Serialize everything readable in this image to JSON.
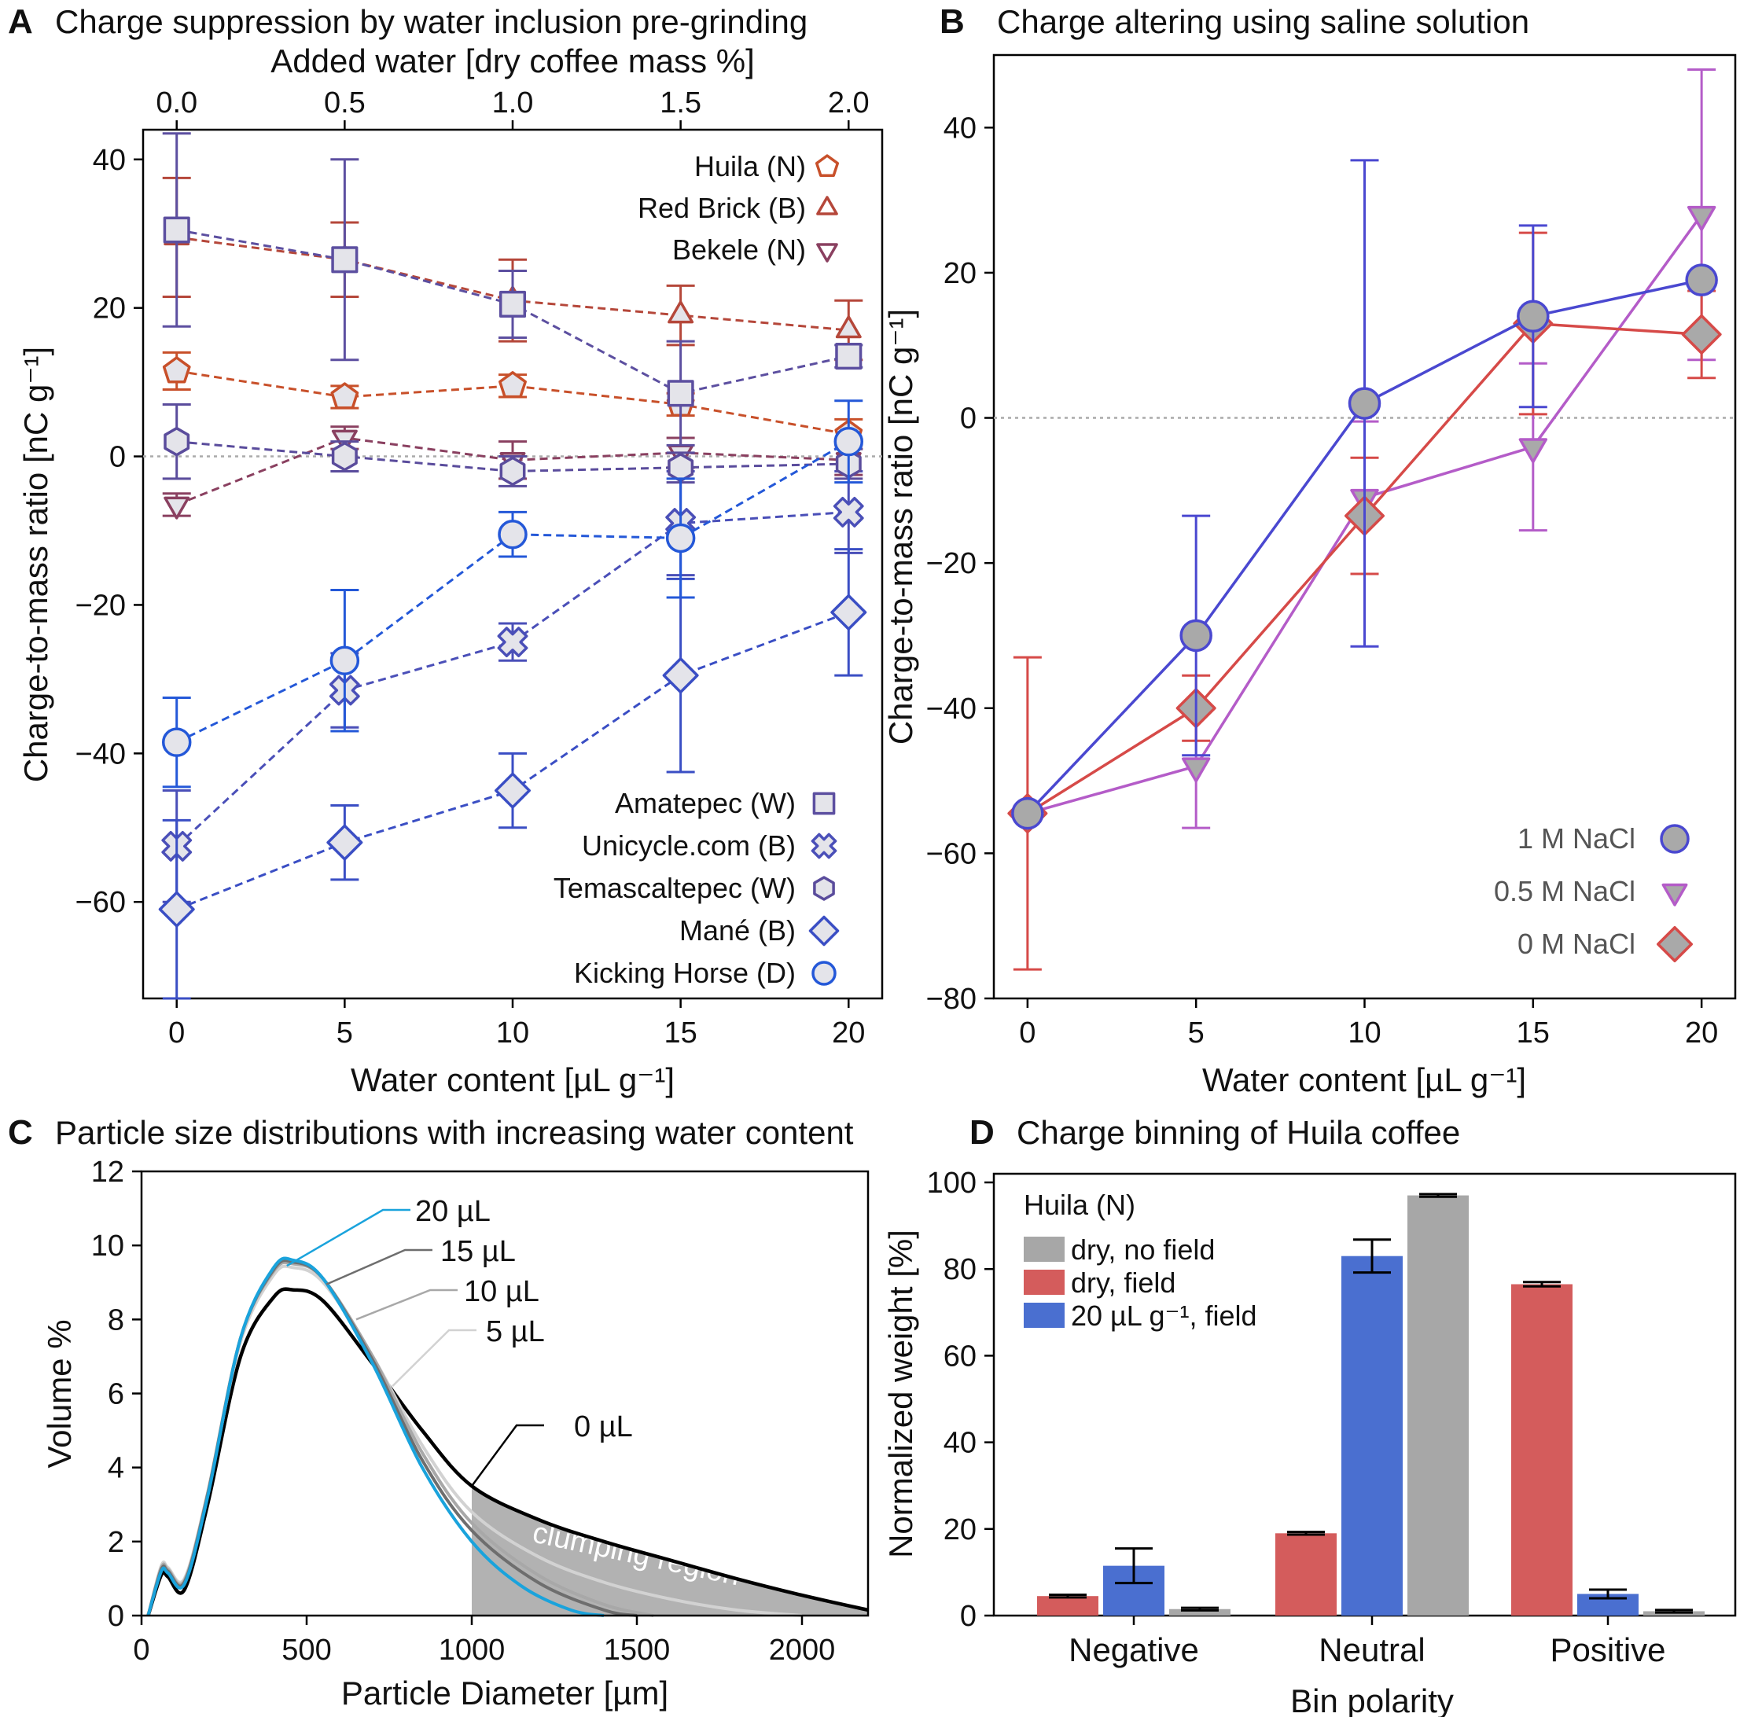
{
  "chart_data": [
    {
      "panel": "A",
      "type": "line",
      "title": "Charge suppression by water inclusion pre-grinding",
      "xlabel": "Water content [µL g⁻¹]",
      "x2label": "Added water [dry coffee mass %]",
      "ylabel": "Charge-to-mass ratio [nC g⁻¹]",
      "xlim": [
        -1,
        21
      ],
      "ylim": [
        -73,
        44
      ],
      "xticks": [
        0,
        5,
        10,
        15,
        20
      ],
      "x2ticks": [
        "0.0",
        "0.5",
        "1.0",
        "1.5",
        "2.0"
      ],
      "yticks": [
        -60,
        -40,
        -20,
        0,
        20,
        40
      ],
      "x": [
        0,
        5,
        10,
        15,
        20
      ],
      "series": [
        {
          "name": "Huila (N)",
          "marker": "pentagon",
          "color": "#c8502a",
          "values": [
            11.5,
            8,
            9.5,
            7,
            3
          ],
          "err": [
            2.5,
            1.5,
            1.5,
            1.5,
            2
          ]
        },
        {
          "name": "Red Brick (B)",
          "marker": "triangle-up",
          "color": "#b5473a",
          "values": [
            29.5,
            26.5,
            21,
            19,
            17
          ],
          "err": [
            8,
            5,
            5.5,
            4,
            4
          ]
        },
        {
          "name": "Bekele (N)",
          "marker": "triangle-down",
          "color": "#8a4060",
          "values": [
            -6.5,
            2.5,
            -0.5,
            0.5,
            -0.5
          ],
          "err": [
            1.5,
            1.5,
            2.5,
            2,
            2
          ]
        },
        {
          "name": "Amatepec (W)",
          "marker": "square",
          "color": "#5c4fa0",
          "values": [
            30.5,
            26.5,
            20.5,
            8.5,
            13.5
          ],
          "err": [
            13,
            13.5,
            4.5,
            7,
            1.5
          ]
        },
        {
          "name": "Unicycle.com (B)",
          "marker": "cross",
          "color": "#4a4fb8",
          "values": [
            -52.5,
            -31.5,
            -25,
            -9,
            -7.5
          ],
          "err": [
            7.5,
            5,
            2.5,
            7,
            5.5
          ]
        },
        {
          "name": "Temascaltepec (W)",
          "marker": "hexagon",
          "color": "#5a4c9c",
          "values": [
            2,
            0,
            -2,
            -1.5,
            -1
          ],
          "err": [
            5,
            2,
            2,
            2,
            2
          ]
        },
        {
          "name": "Mané (B)",
          "marker": "diamond",
          "color": "#3a4ec4",
          "values": [
            -61,
            -52,
            -45,
            -29.5,
            -21
          ],
          "err": [
            12,
            5,
            5,
            13,
            8.5
          ]
        },
        {
          "name": "Kicking Horse (D)",
          "marker": "circle",
          "color": "#2458d8",
          "values": [
            -38.5,
            -27.5,
            -10.5,
            -11,
            2
          ],
          "err": [
            6,
            9.5,
            3,
            8,
            5.5
          ]
        }
      ]
    },
    {
      "panel": "B",
      "type": "line",
      "title": "Charge altering using saline solution",
      "xlabel": "Water content [µL g⁻¹]",
      "ylabel": "Charge-to-mass ratio [nC g⁻¹]",
      "xlim": [
        -1,
        21
      ],
      "ylim": [
        -80,
        50
      ],
      "xticks": [
        0,
        5,
        10,
        15,
        20
      ],
      "yticks": [
        -80,
        -60,
        -40,
        -20,
        0,
        20,
        40
      ],
      "series": [
        {
          "name": "1 M NaCl",
          "marker": "circle",
          "color": "#4a48d0",
          "x": [
            0,
            5,
            10,
            15,
            20
          ],
          "values": [
            -54.5,
            -30,
            2,
            14,
            19
          ],
          "err": [
            0,
            16.5,
            33.5,
            12.5,
            0
          ]
        },
        {
          "name": "0.5 M NaCl",
          "marker": "triangle-down",
          "color": "#b45cc8",
          "x": [
            0,
            5,
            10,
            15,
            20
          ],
          "values": [
            -54.5,
            -48,
            -11,
            -4,
            28
          ],
          "err": [
            0,
            8.5,
            10.5,
            11.5,
            20
          ]
        },
        {
          "name": "0 M NaCl",
          "marker": "diamond",
          "color": "#d64a48",
          "x": [
            0,
            5,
            10,
            15,
            20
          ],
          "values": [
            -54.5,
            -40,
            -13.5,
            13,
            11.5
          ],
          "err": [
            21.5,
            4.5,
            8,
            12.5,
            6
          ]
        }
      ]
    },
    {
      "panel": "C",
      "type": "line",
      "title": "Particle size distributions with increasing water content",
      "xlabel": "Particle Diameter [µm]",
      "ylabel": "Volume %",
      "xlim": [
        0,
        2200
      ],
      "ylim": [
        0,
        12
      ],
      "xticks": [
        0,
        500,
        1000,
        1500,
        2000
      ],
      "yticks": [
        0,
        2,
        4,
        6,
        8,
        10,
        12
      ],
      "annotation": "clumping region",
      "series": [
        {
          "name": "0 µL",
          "color": "#000000",
          "x": [
            20,
            60,
            80,
            130,
            200,
            300,
            400,
            460,
            550,
            700,
            850,
            1000,
            1200,
            1400,
            1600,
            1800,
            2000,
            2200
          ],
          "values": [
            0,
            1.1,
            1.05,
            0.7,
            3,
            7,
            8.6,
            8.8,
            8.5,
            6.8,
            5,
            3.5,
            2.6,
            2,
            1.5,
            1,
            0.55,
            0.15
          ]
        },
        {
          "name": "5 µL",
          "color": "#d2d2d2",
          "x": [
            20,
            60,
            80,
            130,
            200,
            300,
            400,
            460,
            550,
            700,
            850,
            1000,
            1200,
            1400,
            1600,
            1800,
            2000
          ],
          "values": [
            0,
            1.35,
            1.3,
            1.0,
            3.3,
            7.4,
            9.2,
            9.4,
            9.0,
            7.0,
            4.6,
            2.8,
            1.6,
            0.9,
            0.45,
            0.15,
            0
          ]
        },
        {
          "name": "10 µL",
          "color": "#a8a8a8",
          "x": [
            20,
            60,
            80,
            130,
            200,
            300,
            400,
            460,
            550,
            700,
            850,
            1000,
            1200,
            1400,
            1550
          ],
          "values": [
            0,
            1.3,
            1.25,
            0.95,
            3.3,
            7.5,
            9.3,
            9.5,
            9.1,
            7.0,
            4.4,
            2.5,
            1.1,
            0.3,
            0
          ]
        },
        {
          "name": "15 µL",
          "color": "#6e6e6e",
          "x": [
            20,
            60,
            80,
            130,
            200,
            300,
            400,
            460,
            550,
            700,
            850,
            1000,
            1200,
            1400,
            1500
          ],
          "values": [
            0,
            1.25,
            1.2,
            0.9,
            3.25,
            7.5,
            9.35,
            9.55,
            9.1,
            6.9,
            4.2,
            2.3,
            0.9,
            0.15,
            0
          ]
        },
        {
          "name": "20 µL",
          "color": "#1aa3dc",
          "x": [
            20,
            60,
            80,
            130,
            200,
            300,
            400,
            460,
            550,
            700,
            850,
            1000,
            1150,
            1300,
            1400
          ],
          "values": [
            0,
            1.2,
            1.15,
            0.85,
            3.2,
            7.5,
            9.4,
            9.6,
            9.1,
            6.8,
            4.0,
            2.0,
            0.8,
            0.15,
            0
          ]
        }
      ]
    },
    {
      "panel": "D",
      "type": "bar",
      "title": "Charge binning of Huila coffee",
      "xlabel": "Bin polarity",
      "ylabel": "Normalized weight [%]",
      "ylim": [
        0,
        102
      ],
      "yticks": [
        0,
        20,
        40,
        60,
        80,
        100
      ],
      "legend_title": "Huila (N)",
      "categories": [
        "Negative",
        "Neutral",
        "Positive"
      ],
      "series": [
        {
          "name": "dry, field",
          "color": "#d45c5c",
          "values": [
            4.5,
            19,
            76.5
          ],
          "err": [
            0.3,
            0.3,
            0.5
          ]
        },
        {
          "name": "20 µL g⁻¹, field",
          "color": "#4a6fd0",
          "values": [
            11.5,
            83,
            5
          ],
          "err": [
            4,
            3.8,
            1
          ]
        },
        {
          "name": "dry, no field",
          "color": "#a7a7a7",
          "values": [
            1.5,
            97,
            1
          ],
          "err": [
            0.3,
            0.3,
            0.3
          ]
        }
      ]
    }
  ],
  "labels": {
    "A_letter": "A",
    "B_letter": "B",
    "C_letter": "C",
    "D_letter": "D",
    "A_tick_added": [
      "0.0",
      "0.5",
      "1.0",
      "1.5",
      "2.0"
    ],
    "C_curve_labels": [
      "20 µL",
      "15 µL",
      "10 µL",
      "5 µL",
      "0 µL"
    ],
    "D_legend_order": [
      "dry, no field",
      "dry, field",
      "20 µL g⁻¹, field"
    ]
  }
}
